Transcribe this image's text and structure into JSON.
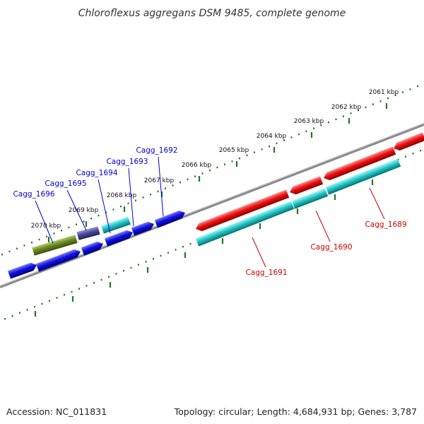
{
  "title": "Chloroflexus aggregans DSM 9485, complete genome",
  "footer": {
    "accession": "Accession: NC_011831",
    "summary": "Topology: circular; Length: 4,684,931 bp; Genes: 3,787"
  },
  "colors": {
    "backbone": "#8a8a8a",
    "tick": "#1f7a1f",
    "label_upper": "#0000cc",
    "label_lower": "#cc0000",
    "blue": "#1010e0",
    "cyan": "#20c8c8",
    "red": "#ee1010",
    "olive": "#6b8a22",
    "slate": "#4a4a99"
  },
  "scale_ticks": [
    {
      "label": "2061 kbp"
    },
    {
      "label": "2062 kbp"
    },
    {
      "label": "2063 kbp"
    },
    {
      "label": "2064 kbp"
    },
    {
      "label": "2065 kbp"
    },
    {
      "label": "2066 kbp"
    },
    {
      "label": "2067 kbp"
    },
    {
      "label": "2068 kbp"
    },
    {
      "label": "2069 kbp"
    },
    {
      "label": "2070 kbp"
    }
  ],
  "gene_labels_upper": [
    {
      "label": "Cagg_1692"
    },
    {
      "label": "Cagg_1693"
    },
    {
      "label": "Cagg_1694"
    },
    {
      "label": "Cagg_1695"
    },
    {
      "label": "Cagg_1696"
    }
  ],
  "gene_labels_lower": [
    {
      "label": "Cagg_1689"
    },
    {
      "label": "Cagg_1690"
    },
    {
      "label": "Cagg_1691"
    }
  ]
}
